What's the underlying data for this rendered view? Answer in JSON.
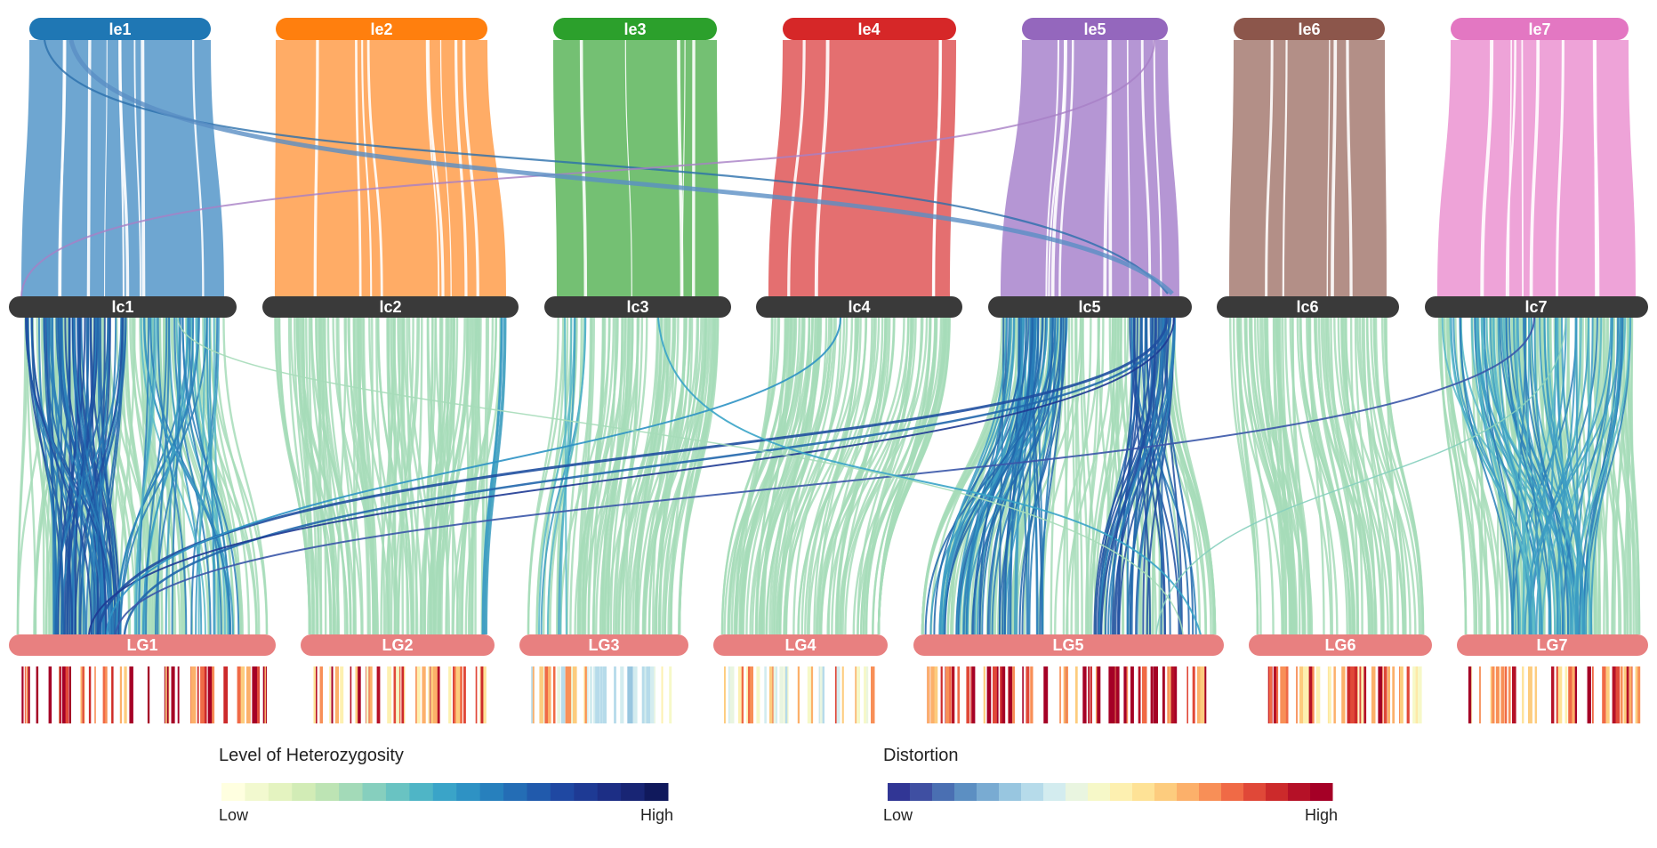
{
  "top_groups": [
    {
      "id": "le1",
      "label": "le1",
      "color": "#1f77b4",
      "fill": "#6ea6d1"
    },
    {
      "id": "le2",
      "label": "le2",
      "color": "#ff7f0e",
      "fill": "#ffac66"
    },
    {
      "id": "le3",
      "label": "le3",
      "color": "#2ca02c",
      "fill": "#74c073"
    },
    {
      "id": "le4",
      "label": "le4",
      "color": "#d62728",
      "fill": "#e46f70"
    },
    {
      "id": "le5",
      "label": "le5",
      "color": "#9467bd",
      "fill": "#b596d4"
    },
    {
      "id": "le6",
      "label": "le6",
      "color": "#8c564b",
      "fill": "#b38f87"
    },
    {
      "id": "le7",
      "label": "le7",
      "color": "#e377c2",
      "fill": "#eea3d8"
    }
  ],
  "mid_groups": [
    {
      "id": "lc1",
      "label": "lc1"
    },
    {
      "id": "lc2",
      "label": "lc2"
    },
    {
      "id": "lc3",
      "label": "lc3"
    },
    {
      "id": "lc4",
      "label": "lc4"
    },
    {
      "id": "lc5",
      "label": "lc5"
    },
    {
      "id": "lc6",
      "label": "lc6"
    },
    {
      "id": "lc7",
      "label": "lc7"
    }
  ],
  "bottom_groups": [
    {
      "id": "LG1",
      "label": "LG1"
    },
    {
      "id": "LG2",
      "label": "LG2"
    },
    {
      "id": "LG3",
      "label": "LG3"
    },
    {
      "id": "LG4",
      "label": "LG4"
    },
    {
      "id": "LG5",
      "label": "LG5"
    },
    {
      "id": "LG6",
      "label": "LG6"
    },
    {
      "id": "LG7",
      "label": "LG7"
    }
  ],
  "colors": {
    "mid_bar": "#3a3a3a",
    "bottom_bar": "#e88080",
    "link_low": "#a6dcb9",
    "link_high": "#1f4fa0"
  },
  "legend_heterozygosity": {
    "title": "Level of Heterozygosity",
    "low": "Low",
    "high": "High",
    "colors": [
      "#ffffe0",
      "#f2f9cf",
      "#e4f3c0",
      "#d2ecb6",
      "#bde4b4",
      "#a3dab8",
      "#86cfbe",
      "#69c3c2",
      "#4fb5c6",
      "#3aa4c8",
      "#2e92c4",
      "#2780bd",
      "#246db5",
      "#215aac",
      "#1f48a2",
      "#1e3a94",
      "#1c2e85",
      "#182574",
      "#10195c"
    ]
  },
  "legend_distortion": {
    "title": "Distortion",
    "low": "Low",
    "high": "High",
    "colors": [
      "#313695",
      "#3f4fa2",
      "#4a6fb2",
      "#5c8fc2",
      "#79abd2",
      "#98c6e0",
      "#b6dbea",
      "#d3ecef",
      "#e9f5e0",
      "#f6f8c8",
      "#fdf0b0",
      "#fee296",
      "#fdcc7e",
      "#fcb06a",
      "#f88f57",
      "#f06a46",
      "#e04838",
      "#cc2a2b",
      "#b51127",
      "#a50026"
    ]
  }
}
